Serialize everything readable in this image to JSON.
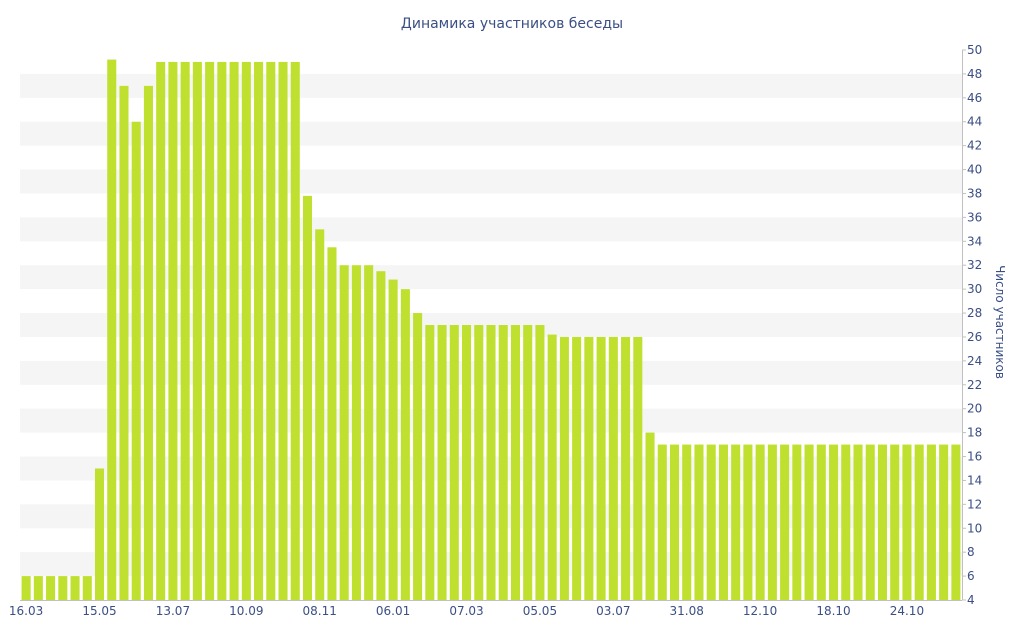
{
  "chart_data": {
    "type": "bar",
    "title": "Динамика участников беседы",
    "ylabel": "Число участников",
    "xlabel": "",
    "ylim": [
      4,
      50
    ],
    "y_ticks": [
      4,
      6,
      8,
      10,
      12,
      14,
      16,
      18,
      20,
      22,
      24,
      26,
      28,
      30,
      32,
      34,
      36,
      38,
      40,
      42,
      44,
      46,
      48,
      50
    ],
    "y_axis_side": "right",
    "x_tick_labels": [
      {
        "label": "16.03",
        "index": 0
      },
      {
        "label": "15.05",
        "index": 6
      },
      {
        "label": "13.07",
        "index": 12
      },
      {
        "label": "10.09",
        "index": 18
      },
      {
        "label": "08.11",
        "index": 24
      },
      {
        "label": "06.01",
        "index": 30
      },
      {
        "label": "07.03",
        "index": 36
      },
      {
        "label": "05.05",
        "index": 42
      },
      {
        "label": "03.07",
        "index": 48
      },
      {
        "label": "31.08",
        "index": 54
      },
      {
        "label": "12.10",
        "index": 60
      },
      {
        "label": "18.10",
        "index": 66
      },
      {
        "label": "24.10",
        "index": 72
      }
    ],
    "values": [
      6,
      6,
      6,
      6,
      6,
      6,
      15,
      49.2,
      47,
      44,
      47,
      49,
      49,
      49,
      49,
      49,
      49,
      49,
      49,
      49,
      49,
      49,
      49,
      37.8,
      35,
      33.5,
      32,
      32,
      32,
      31.5,
      30.8,
      30,
      28,
      27,
      27,
      27,
      27,
      27,
      27,
      27,
      27,
      27,
      27,
      26.2,
      26,
      26,
      26,
      26,
      26,
      26,
      26,
      18,
      17,
      17,
      17,
      17,
      17,
      17,
      17,
      17,
      17,
      17,
      17,
      17,
      17,
      17,
      17,
      17,
      17,
      17,
      17,
      17,
      17,
      17,
      17,
      17,
      17
    ],
    "bar_color": "#bfe02e",
    "band_color": "#f5f5f5",
    "text_color": "#3b4f86",
    "grid": "alternating-bands"
  }
}
